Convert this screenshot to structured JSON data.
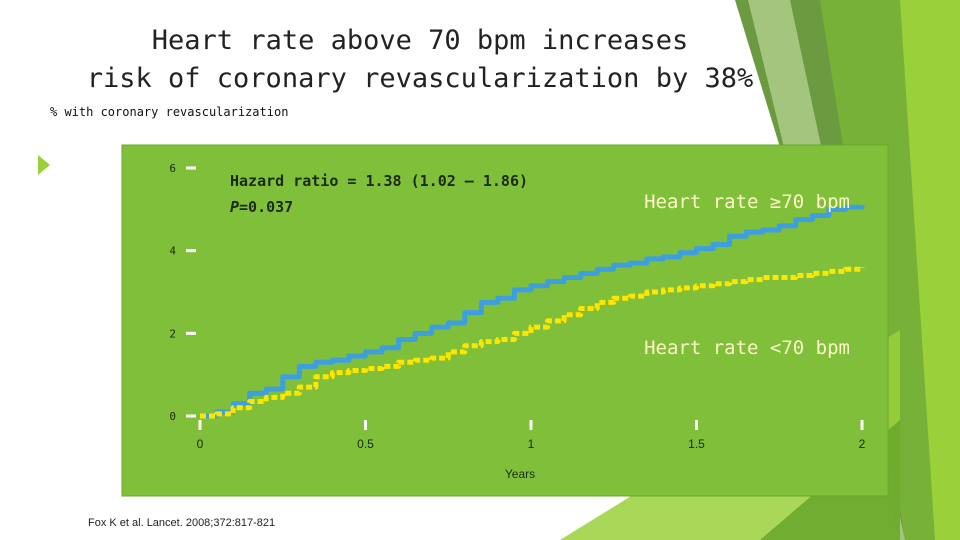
{
  "slide": {
    "title_line1": "Heart rate above 70 bpm increases",
    "title_line2": "risk of coronary revascularization by 38%",
    "reference": "Fox K et al. Lancet. 2008;372:817-821"
  },
  "colors": {
    "panel": "#7fbf3a",
    "panel_edge": "#6aa82d",
    "high_series": "#3e9fe0",
    "low_series": "#ffe600",
    "label_text": "#fff8c8",
    "decor_green_dark": "#5b8f2c",
    "decor_green_light": "#8cc63f",
    "decor_green_bright": "#9ad13b"
  },
  "chart_data": {
    "type": "line",
    "title": "",
    "ylabel": "% with coronary revascularization",
    "xlabel": "Years",
    "xlim": [
      0,
      2
    ],
    "ylim": [
      0,
      6
    ],
    "xticks": [
      "0",
      "0.5",
      "1",
      "1.5",
      "2"
    ],
    "yticks": [
      "0",
      "2",
      "4",
      "6"
    ],
    "annotation_hr": "Hazard ratio = 1.38 (1.02 – 1.86)",
    "annotation_p_italic": "P",
    "annotation_p_value": "=0.037",
    "series": [
      {
        "name": "Heart rate ≥70 bpm",
        "style": "solid",
        "x": [
          0,
          0.05,
          0.1,
          0.15,
          0.2,
          0.25,
          0.3,
          0.35,
          0.4,
          0.45,
          0.5,
          0.55,
          0.6,
          0.65,
          0.7,
          0.75,
          0.8,
          0.85,
          0.9,
          0.95,
          1.0,
          1.05,
          1.1,
          1.15,
          1.2,
          1.25,
          1.3,
          1.35,
          1.4,
          1.45,
          1.5,
          1.55,
          1.6,
          1.65,
          1.7,
          1.75,
          1.8,
          1.85,
          1.9,
          1.95,
          2.0
        ],
        "values": [
          0,
          0.1,
          0.3,
          0.55,
          0.65,
          0.95,
          1.2,
          1.3,
          1.35,
          1.45,
          1.55,
          1.65,
          1.85,
          2.0,
          2.15,
          2.25,
          2.5,
          2.75,
          2.85,
          3.05,
          3.15,
          3.25,
          3.35,
          3.45,
          3.55,
          3.65,
          3.7,
          3.8,
          3.85,
          3.95,
          4.05,
          4.15,
          4.35,
          4.45,
          4.5,
          4.6,
          4.75,
          4.85,
          5.0,
          5.05,
          5.1
        ]
      },
      {
        "name": "Heart rate <70 bpm",
        "style": "dotted",
        "x": [
          0,
          0.05,
          0.1,
          0.15,
          0.2,
          0.25,
          0.3,
          0.35,
          0.4,
          0.45,
          0.5,
          0.55,
          0.6,
          0.65,
          0.7,
          0.75,
          0.8,
          0.85,
          0.9,
          0.95,
          1.0,
          1.05,
          1.1,
          1.15,
          1.2,
          1.25,
          1.3,
          1.35,
          1.4,
          1.45,
          1.5,
          1.55,
          1.6,
          1.65,
          1.7,
          1.75,
          1.8,
          1.85,
          1.9,
          1.95,
          2.0
        ],
        "values": [
          0,
          0.05,
          0.2,
          0.35,
          0.45,
          0.55,
          0.7,
          0.95,
          1.05,
          1.1,
          1.15,
          1.2,
          1.3,
          1.35,
          1.4,
          1.55,
          1.7,
          1.8,
          1.85,
          2.0,
          2.15,
          2.3,
          2.45,
          2.6,
          2.75,
          2.85,
          2.9,
          3.0,
          3.05,
          3.1,
          3.15,
          3.2,
          3.25,
          3.3,
          3.35,
          3.35,
          3.4,
          3.45,
          3.5,
          3.55,
          3.6
        ]
      }
    ]
  }
}
